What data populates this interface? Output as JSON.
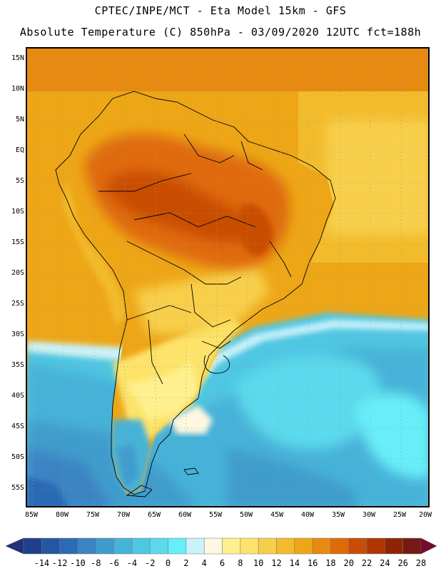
{
  "header": {
    "line1": "CPTEC/INPE/MCT -  Eta Model 15km - GFS",
    "line2": "Absolute Temperature (C) 850hPa - 03/09/2020 12UTC fct=188h"
  },
  "map": {
    "region": "South America",
    "lat_labels": [
      "15N",
      "10N",
      "5N",
      "EQ",
      "5S",
      "10S",
      "15S",
      "20S",
      "25S",
      "30S",
      "35S",
      "40S",
      "45S",
      "50S",
      "55S"
    ],
    "lon_labels": [
      "85W",
      "80W",
      "75W",
      "70W",
      "65W",
      "60W",
      "55W",
      "50W",
      "45W",
      "40W",
      "35W",
      "30W",
      "25W",
      "20W"
    ],
    "grid_style": "dotted"
  },
  "colorbar": {
    "labels": [
      "-14",
      "-12",
      "-10",
      "-8",
      "-6",
      "-4",
      "-2",
      "0",
      "2",
      "4",
      "6",
      "8",
      "10",
      "12",
      "14",
      "16",
      "18",
      "20",
      "22",
      "24",
      "26",
      "28"
    ],
    "colors": [
      "#1d3f8e",
      "#2456a2",
      "#2b6bb4",
      "#3a84c4",
      "#3f9ccc",
      "#46b2d8",
      "#4fc6e2",
      "#5cd9ec",
      "#68eef8",
      "#c9f2fb",
      "#fff7df",
      "#fff08f",
      "#fde36b",
      "#f8cf4c",
      "#f2bb2c",
      "#eda616",
      "#e78a12",
      "#df6a08",
      "#c94d06",
      "#ad3604",
      "#8f2405",
      "#731a15"
    ],
    "under_color": "#20307a",
    "over_color": "#780a2e"
  }
}
